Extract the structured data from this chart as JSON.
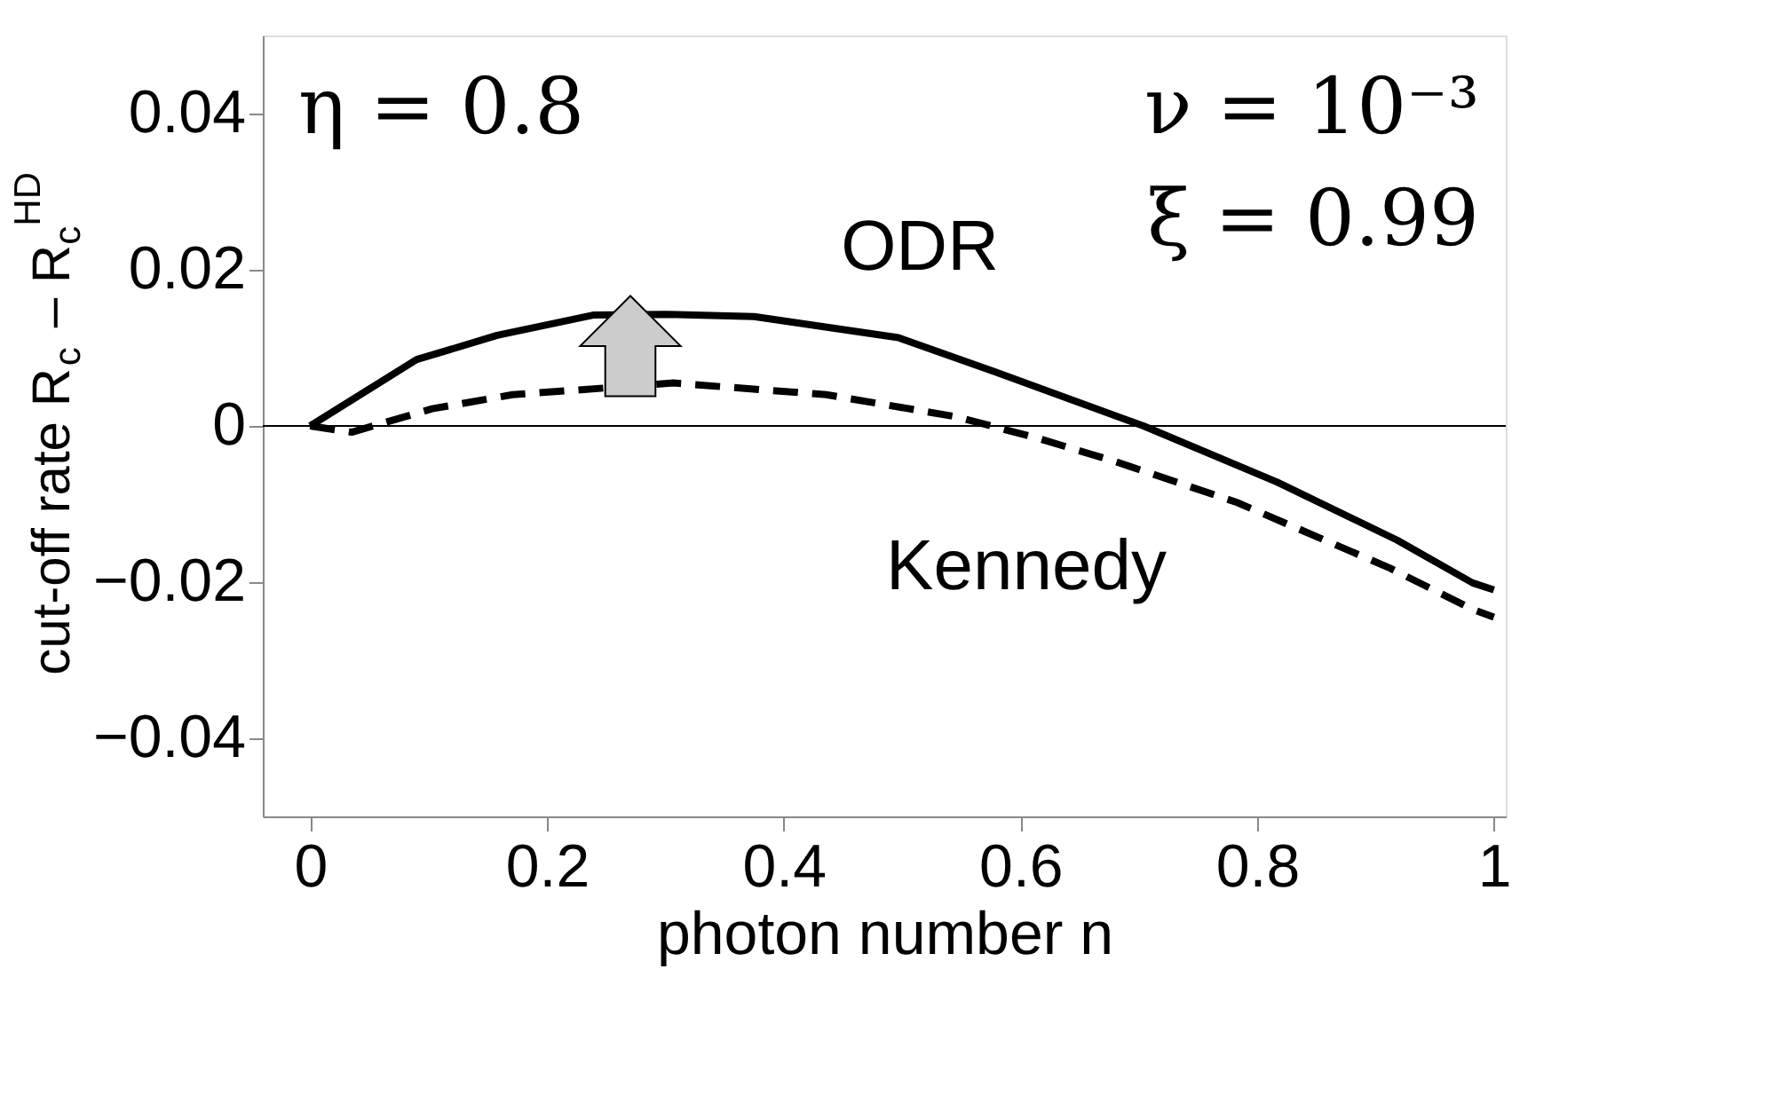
{
  "chart_data": {
    "type": "line",
    "xlabel": "photon number n",
    "ylabel": "cut-off rate R$_{c}$ – R$_{c}$$^{HD}$",
    "xlim": [
      -0.04,
      1.01
    ],
    "ylim": [
      -0.05,
      0.05
    ],
    "xticks": [
      0,
      0.2,
      0.4,
      0.6,
      0.8,
      1
    ],
    "yticks": [
      -0.04,
      -0.02,
      0,
      0.02,
      0.04
    ],
    "series": [
      {
        "name": "ODR",
        "color": "#000000",
        "line_style": "solid",
        "x": [
          0,
          0.09,
          0.158,
          0.239,
          0.3,
          0.375,
          0.497,
          0.579,
          0.704,
          0.817,
          0.918,
          0.982,
          1
        ],
        "values": [
          0,
          0.0085,
          0.0116,
          0.0142,
          0.0143,
          0.014,
          0.0113,
          0.0069,
          0,
          -0.0072,
          -0.0146,
          -0.0201,
          -0.021
        ]
      },
      {
        "name": "Kennedy",
        "color": "#000000",
        "line_style": "dashed",
        "x": [
          0,
          0.035,
          0.103,
          0.171,
          0.307,
          0.436,
          0.545,
          0.613,
          0.681,
          0.783,
          0.912,
          0.982,
          1
        ],
        "values": [
          0,
          -0.0008,
          0.0022,
          0.004,
          0.0055,
          0.004,
          0.0012,
          -0.0015,
          -0.0046,
          -0.0098,
          -0.0182,
          -0.0235,
          -0.0245
        ]
      }
    ],
    "ref_lines": [
      {
        "axis": "y",
        "value": 0,
        "color": "#000000"
      }
    ],
    "annotations": [
      "η = 0.8",
      "ν = 10⁻³",
      "ξ = 0.99"
    ],
    "grid": false,
    "marker": "none"
  }
}
